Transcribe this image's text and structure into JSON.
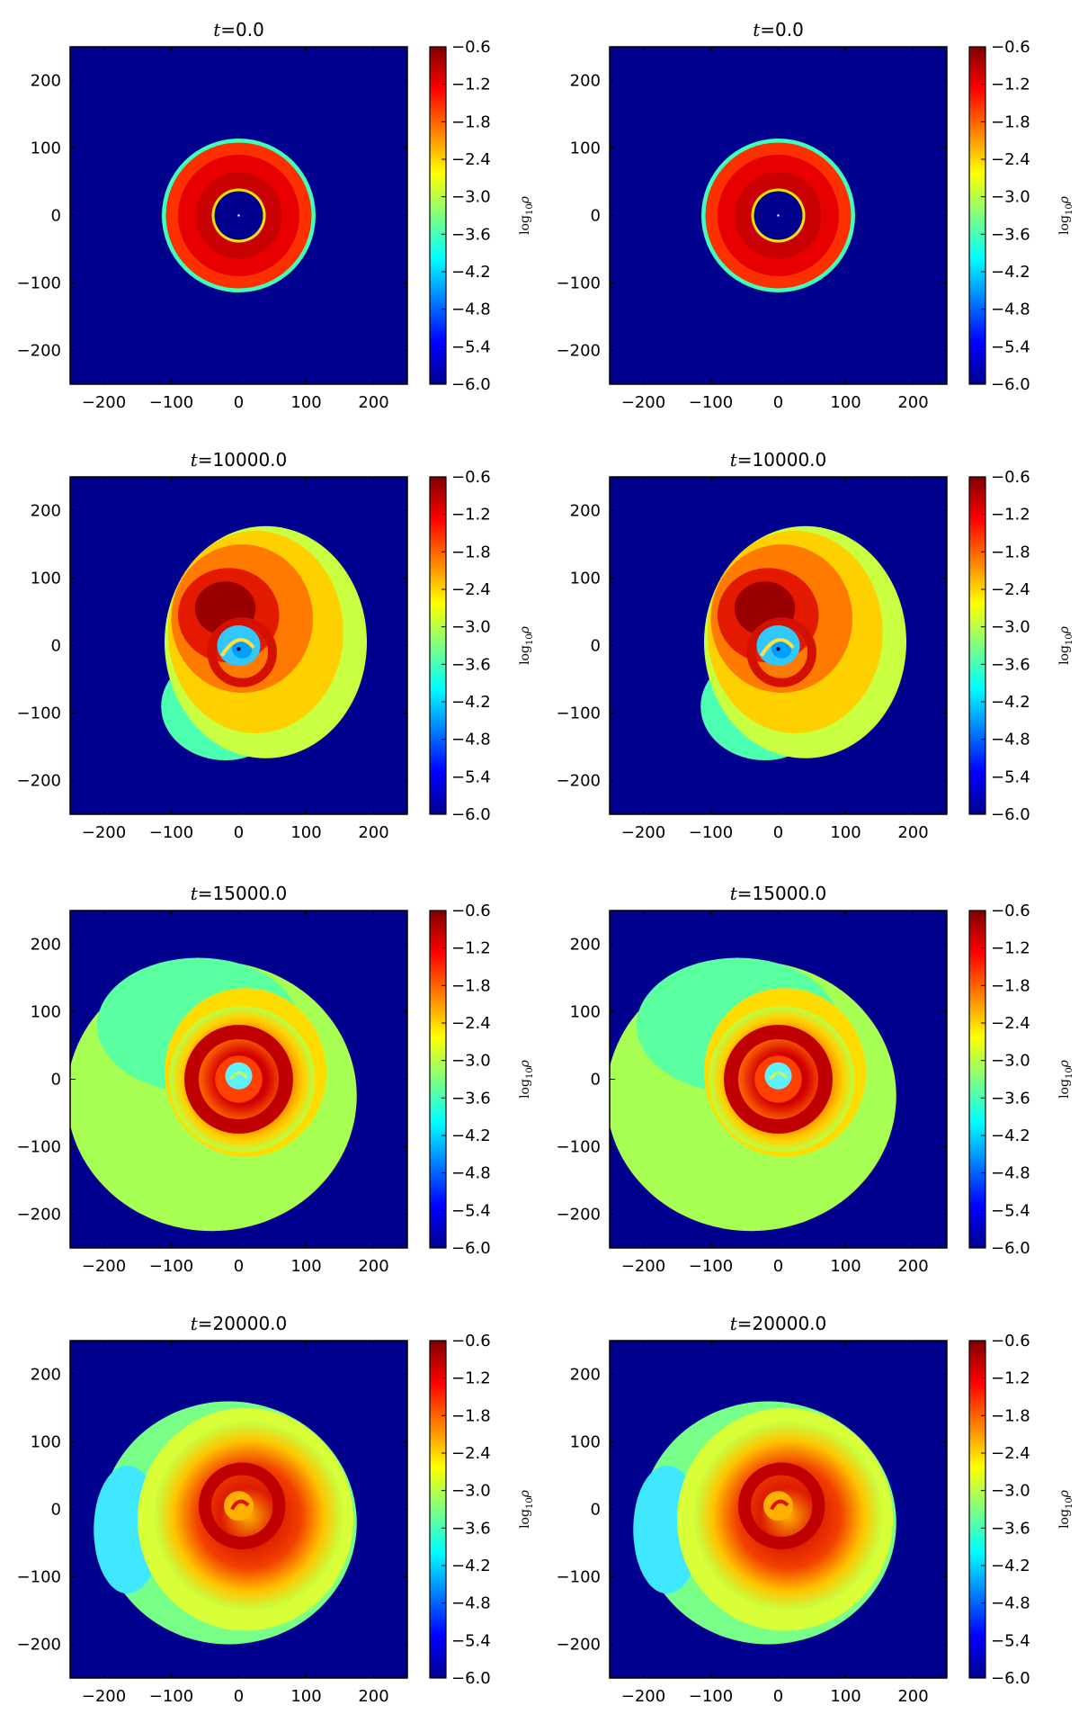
{
  "chart_data": {
    "type": "heatmap",
    "layout": {
      "rows": 4,
      "columns": 2
    },
    "panels": [
      {
        "title_var": "t",
        "title_eq": "=",
        "title_value": "0.0",
        "t": 0.0,
        "state": "initial torus"
      },
      {
        "title_var": "t",
        "title_eq": "=",
        "title_value": "0.0",
        "t": 0.0,
        "state": "initial torus"
      },
      {
        "title_var": "t",
        "title_eq": "=",
        "title_value": "10000.0",
        "t": 10000.0,
        "state": "spiral, partly expanded"
      },
      {
        "title_var": "t",
        "title_eq": "=",
        "title_value": "10000.0",
        "t": 10000.0,
        "state": "spiral, partly expanded"
      },
      {
        "title_var": "t",
        "title_eq": "=",
        "title_value": "15000.0",
        "t": 15000.0,
        "state": "expanded envelope"
      },
      {
        "title_var": "t",
        "title_eq": "=",
        "title_value": "15000.0",
        "t": 15000.0,
        "state": "expanded envelope"
      },
      {
        "title_var": "t",
        "title_eq": "=",
        "title_value": "20000.0",
        "t": 20000.0,
        "state": "dense spiral disk"
      },
      {
        "title_var": "t",
        "title_eq": "=",
        "title_value": "20000.0",
        "t": 20000.0,
        "state": "dense spiral disk"
      }
    ],
    "x_ticks": [
      -200,
      -100,
      0,
      100,
      200
    ],
    "x_tick_labels": [
      "−200",
      "−100",
      "0",
      "100",
      "200"
    ],
    "y_ticks": [
      200,
      100,
      0,
      -100,
      -200
    ],
    "y_tick_labels": [
      "200",
      "100",
      "0",
      "−100",
      "−200"
    ],
    "xlim": [
      -250,
      250
    ],
    "ylim": [
      -250,
      250
    ],
    "colorbar": {
      "label_base": "log",
      "label_sub": "10",
      "label_sym": "ρ",
      "range": [
        -6.0,
        -0.6
      ],
      "ticks": [
        -0.6,
        -1.2,
        -1.8,
        -2.4,
        -3.0,
        -3.6,
        -4.2,
        -4.8,
        -5.4,
        -6.0
      ],
      "tick_labels": [
        "−0.6",
        "−1.2",
        "−1.8",
        "−2.4",
        "−3.0",
        "−3.6",
        "−4.2",
        "−4.8",
        "−5.4",
        "−6.0"
      ],
      "colormap": "jet"
    },
    "colors": {
      "background_value": "#00008f"
    }
  }
}
